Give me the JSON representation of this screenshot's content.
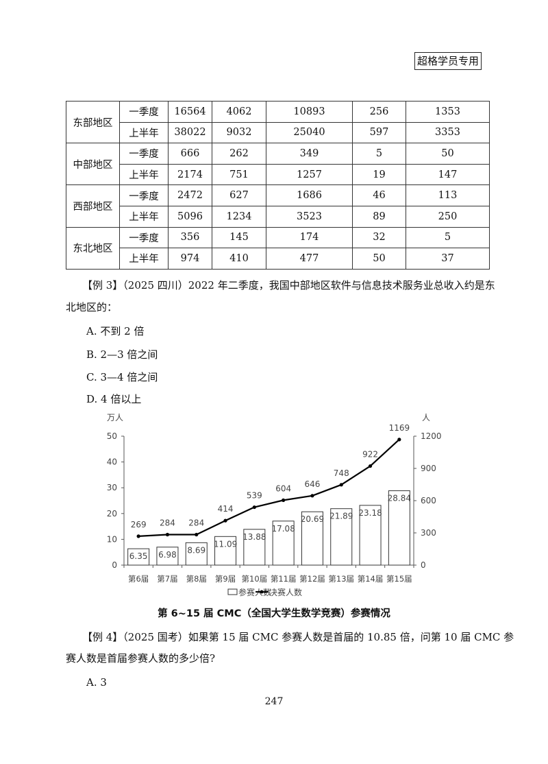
{
  "header": {
    "badge": "超格学员专用"
  },
  "table": {
    "groups": [
      {
        "region": "东部地区",
        "rows": [
          {
            "period": "一季度",
            "values": [
              "16564",
              "4062",
              "10893",
              "256",
              "1353"
            ]
          },
          {
            "period": "上半年",
            "values": [
              "38022",
              "9032",
              "25040",
              "597",
              "3353"
            ]
          }
        ]
      },
      {
        "region": "中部地区",
        "rows": [
          {
            "period": "一季度",
            "values": [
              "666",
              "262",
              "349",
              "5",
              "50"
            ]
          },
          {
            "period": "上半年",
            "values": [
              "2174",
              "751",
              "1257",
              "19",
              "147"
            ]
          }
        ]
      },
      {
        "region": "西部地区",
        "rows": [
          {
            "period": "一季度",
            "values": [
              "2472",
              "627",
              "1686",
              "46",
              "113"
            ]
          },
          {
            "period": "上半年",
            "values": [
              "5096",
              "1234",
              "3523",
              "89",
              "250"
            ]
          }
        ]
      },
      {
        "region": "东北地区",
        "rows": [
          {
            "period": "一季度",
            "values": [
              "356",
              "145",
              "174",
              "32",
              "5"
            ]
          },
          {
            "period": "上半年",
            "values": [
              "974",
              "410",
              "477",
              "50",
              "37"
            ]
          }
        ]
      }
    ]
  },
  "example3": {
    "line1": "【例 3】（2025 四川）2022 年二季度，我国中部地区软件与信息技术服务业总收入约是东",
    "line2": "北地区的：",
    "options": [
      "A. 不到 2 倍",
      "B. 2—3 倍之间",
      "C. 3—4 倍之间",
      "D. 4 倍以上"
    ]
  },
  "chart_data": {
    "type": "bar+line",
    "title": "第 6~15 届 CMC（全国大学生数学竞赛）参赛情况",
    "categories": [
      "第6届",
      "第7届",
      "第8届",
      "第9届",
      "第10届",
      "第11届",
      "第12届",
      "第13届",
      "第14届",
      "第15届"
    ],
    "series": [
      {
        "name": "参赛人数",
        "type": "bar",
        "axis": "left",
        "values": [
          6.35,
          6.98,
          8.69,
          11.09,
          13.88,
          17.08,
          20.69,
          21.89,
          23.18,
          28.84
        ],
        "labels": [
          "6.35",
          "6.98",
          "8.69",
          "11.09",
          "13.88",
          "17.08",
          "20.69",
          "21.89",
          "23.18",
          "28.84"
        ]
      },
      {
        "name": "决赛人数",
        "type": "line",
        "axis": "right",
        "values": [
          269,
          284,
          284,
          414,
          539,
          604,
          646,
          748,
          922,
          1169
        ],
        "labels": [
          "269",
          "284",
          "284",
          "414",
          "539",
          "604",
          "646",
          "748",
          "922",
          "1169"
        ]
      }
    ],
    "left_axis": {
      "unit": "万人",
      "ylim": [
        0,
        50
      ],
      "ticks": [
        "0",
        "10",
        "20",
        "30",
        "40",
        "50"
      ]
    },
    "right_axis": {
      "unit": "人",
      "ylim": [
        0,
        1200
      ],
      "ticks": [
        "0",
        "300",
        "600",
        "900",
        "1200"
      ]
    },
    "legend": "bottom",
    "grid": false,
    "colors": {
      "bar_fill": "#ffffff",
      "bar_stroke": "#333333",
      "line": "#000000"
    }
  },
  "example4": {
    "line1": "【例 4】（2025 国考）如果第 15 届 CMC 参赛人数是首届的 10.85 倍，问第 10 届 CMC 参",
    "line2": "赛人数是首届参赛人数的多少倍?",
    "options": [
      "A. 3"
    ]
  },
  "footer": {
    "page_number": "247"
  }
}
